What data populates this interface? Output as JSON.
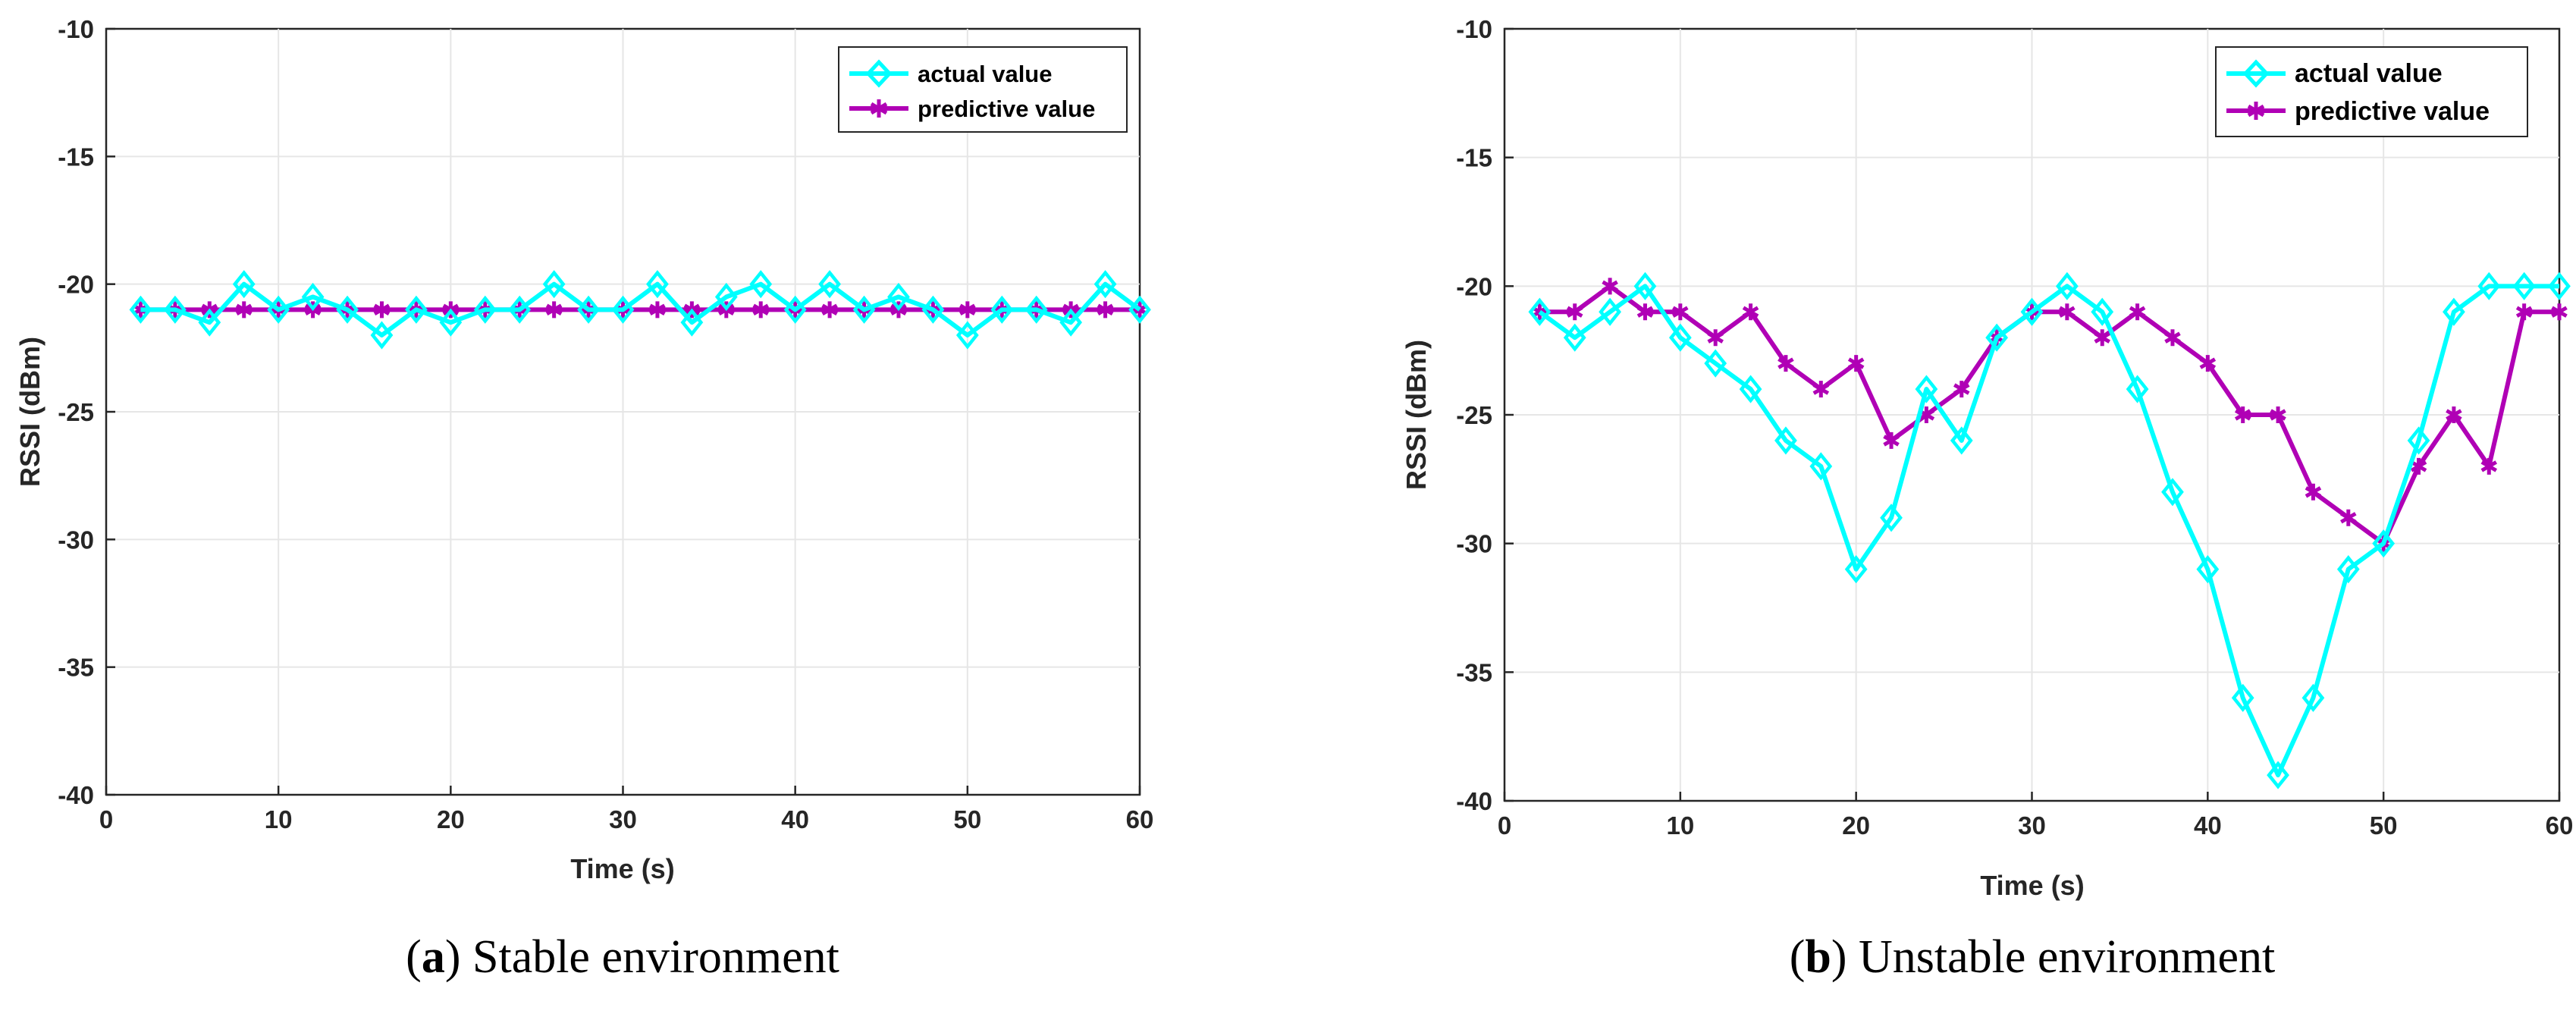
{
  "chart_data": [
    {
      "type": "line",
      "panel": "a",
      "caption_letter": "a",
      "caption_text": "Stable environment",
      "xlabel": "Time (s)",
      "ylabel": "RSSI (dBm)",
      "xlim": [
        0,
        60
      ],
      "ylim": [
        -40,
        -10
      ],
      "xticks": [
        0,
        10,
        20,
        30,
        40,
        50,
        60
      ],
      "yticks": [
        -40,
        -35,
        -30,
        -25,
        -20,
        -15,
        -10
      ],
      "grid": true,
      "legend_position": "top-right",
      "x": [
        2,
        4,
        6,
        8,
        10,
        12,
        14,
        16,
        18,
        20,
        22,
        24,
        26,
        28,
        30,
        32,
        34,
        36,
        38,
        40,
        42,
        44,
        46,
        48,
        50,
        52,
        54,
        56,
        58,
        60
      ],
      "series": [
        {
          "name": "actual value",
          "color": "#00FFFF",
          "marker": "diamond",
          "values": [
            -21,
            -21,
            -21.5,
            -20,
            -21,
            -20.5,
            -21,
            -22,
            -21,
            -21.5,
            -21,
            -21,
            -20,
            -21,
            -21,
            -20,
            -21.5,
            -20.5,
            -20,
            -21,
            -20,
            -21,
            -20.5,
            -21,
            -22,
            -21,
            -21,
            -21.5,
            -20,
            -21
          ]
        },
        {
          "name": "predictive value",
          "color": "#B000B5",
          "marker": "asterisk",
          "values": [
            -21,
            -21,
            -21,
            -21,
            -21,
            -21,
            -21,
            -21,
            -21,
            -21,
            -21,
            -21,
            -21,
            -21,
            -21,
            -21,
            -21,
            -21,
            -21,
            -21,
            -21,
            -21,
            -21,
            -21,
            -21,
            -21,
            -21,
            -21,
            -21,
            -21
          ]
        }
      ]
    },
    {
      "type": "line",
      "panel": "b",
      "caption_letter": "b",
      "caption_text": "Unstable environment",
      "xlabel": "Time (s)",
      "ylabel": "RSSI (dBm)",
      "xlim": [
        0,
        60
      ],
      "ylim": [
        -40,
        -10
      ],
      "xticks": [
        0,
        10,
        20,
        30,
        40,
        50,
        60
      ],
      "yticks": [
        -40,
        -35,
        -30,
        -25,
        -20,
        -15,
        -10
      ],
      "grid": true,
      "legend_position": "top-right",
      "x": [
        2,
        4,
        6,
        8,
        10,
        12,
        14,
        16,
        18,
        20,
        22,
        24,
        26,
        28,
        30,
        32,
        34,
        36,
        38,
        40,
        42,
        44,
        46,
        48,
        50,
        52,
        54,
        56,
        58,
        60
      ],
      "series": [
        {
          "name": "actual value",
          "color": "#00FFFF",
          "marker": "diamond",
          "values": [
            -21,
            -22,
            -21,
            -20,
            -22,
            -23,
            -24,
            -26,
            -27,
            -31,
            -29,
            -24,
            -26,
            -22,
            -21,
            -20,
            -21,
            -24,
            -28,
            -31,
            -36,
            -39,
            -36,
            -31,
            -30,
            -26,
            -21,
            -20,
            -20,
            -20
          ]
        },
        {
          "name": "predictive value",
          "color": "#B000B5",
          "marker": "asterisk",
          "values": [
            -21,
            -21,
            -20,
            -21,
            -21,
            -22,
            -21,
            -23,
            -24,
            -23,
            -26,
            -25,
            -24,
            -22,
            -21,
            -21,
            -22,
            -21,
            -22,
            -23,
            -25,
            -25,
            -28,
            -29,
            -30,
            -27,
            -25,
            -27,
            -21,
            -21
          ]
        }
      ]
    }
  ]
}
